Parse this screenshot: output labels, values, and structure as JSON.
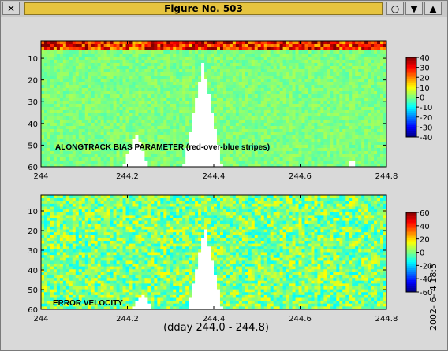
{
  "window": {
    "title": "Figure No. 503",
    "icons": {
      "close": "close-icon",
      "circle": "circle-icon",
      "minimize": "triangle-down-icon",
      "maximize": "triangle-up-icon"
    }
  },
  "figure": {
    "xlabel": "(dday 244.0 - 244.8)",
    "date_stamp": "2002- 6- 4 18:5",
    "panels": [
      {
        "annotation": "ALONGTRACK BIAS PARAMETER (red-over-blue stripes)",
        "xticks": [
          "244",
          "244.2",
          "244.4",
          "244.6",
          "244.8"
        ],
        "yticks": [
          "10",
          "20",
          "30",
          "40",
          "50",
          "60"
        ],
        "colorbar_ticks": [
          "40",
          "30",
          "20",
          "10",
          "0",
          "-10",
          "-20",
          "-30",
          "-40"
        ]
      },
      {
        "annotation": "ERROR VELOCITY",
        "xticks": [
          "244",
          "244.2",
          "244.4",
          "244.6",
          "244.8"
        ],
        "yticks": [
          "10",
          "20",
          "30",
          "40",
          "50",
          "60"
        ],
        "colorbar_ticks": [
          "60",
          "40",
          "20",
          "0",
          "-20",
          "-40",
          "-60"
        ]
      }
    ]
  },
  "chart_data": [
    {
      "type": "heatmap",
      "title": "",
      "annotation": "ALONGTRACK BIAS PARAMETER (red-over-blue stripes)",
      "xlabel": "",
      "ylabel": "",
      "xlim": [
        244,
        244.8
      ],
      "ylim": [
        60,
        2
      ],
      "y_inverted": true,
      "clim": [
        -40,
        40
      ],
      "colormap": "jet",
      "xticks": [
        244,
        244.2,
        244.4,
        244.6,
        244.8
      ],
      "yticks": [
        10,
        20,
        30,
        40,
        50,
        60
      ],
      "colorbar_ticks": [
        40,
        30,
        20,
        10,
        0,
        -10,
        -20,
        -30,
        -40
      ],
      "background_level": 0,
      "surface_band_level": 35,
      "no_data_regions": [
        {
          "x": [
            244.19,
            244.25
          ],
          "peak_depth": 44
        },
        {
          "x": [
            244.33,
            244.42
          ],
          "peak_depth": 12
        },
        {
          "x": [
            244.71,
            244.73
          ],
          "peak_depth": 55
        }
      ]
    },
    {
      "type": "heatmap",
      "title": "",
      "annotation": "ERROR VELOCITY",
      "xlabel": "(dday 244.0 - 244.8)",
      "ylabel": "",
      "xlim": [
        244,
        244.8
      ],
      "ylim": [
        60,
        2
      ],
      "y_inverted": true,
      "clim": [
        -60,
        60
      ],
      "colormap": "jet",
      "xticks": [
        244,
        244.2,
        244.4,
        244.6,
        244.8
      ],
      "yticks": [
        10,
        20,
        30,
        40,
        50,
        60
      ],
      "colorbar_ticks": [
        60,
        40,
        20,
        0,
        -20,
        -40,
        -60
      ],
      "background_level": 0,
      "no_data_regions": [
        {
          "x": [
            244.21,
            244.26
          ],
          "peak_depth": 52
        },
        {
          "x": [
            244.34,
            244.42
          ],
          "peak_depth": 18
        }
      ]
    }
  ]
}
